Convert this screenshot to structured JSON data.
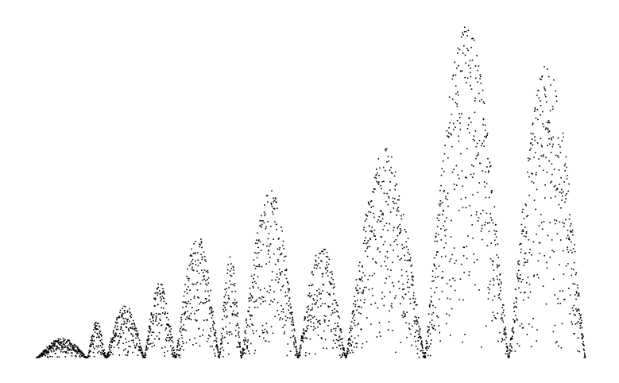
{
  "chart_data": {
    "type": "scatter",
    "title": "",
    "xlabel": "",
    "ylabel": "",
    "axes_visible": false,
    "grid": false,
    "legend": "none",
    "marker_color": "#000000",
    "xlim": [
      0,
      3000
    ],
    "ylim": [
      0,
      100
    ],
    "n_points": 3000,
    "clusters": [
      {
        "start": 1,
        "end": 280,
        "peak": 6
      },
      {
        "start": 280,
        "end": 380,
        "peak": 11
      },
      {
        "start": 380,
        "end": 590,
        "peak": 16
      },
      {
        "start": 590,
        "end": 760,
        "peak": 23
      },
      {
        "start": 760,
        "end": 1000,
        "peak": 37
      },
      {
        "start": 1000,
        "end": 1120,
        "peak": 31
      },
      {
        "start": 1120,
        "end": 1430,
        "peak": 51
      },
      {
        "start": 1430,
        "end": 1690,
        "peak": 34
      },
      {
        "start": 1690,
        "end": 2120,
        "peak": 63
      },
      {
        "start": 2120,
        "end": 2580,
        "peak": 100
      },
      {
        "start": 2580,
        "end": 3000,
        "peak": 88
      }
    ]
  }
}
